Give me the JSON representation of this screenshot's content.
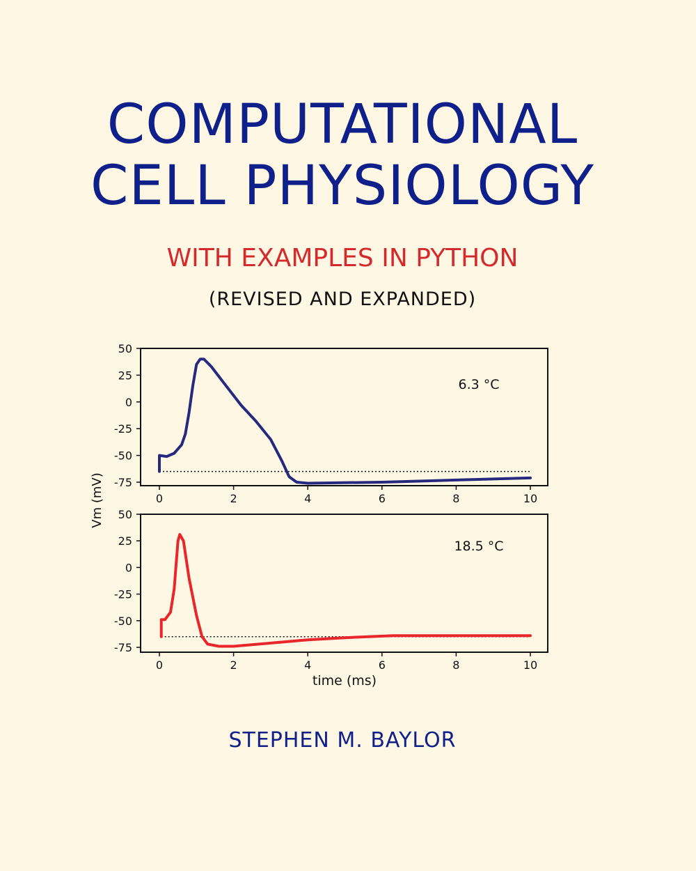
{
  "cover": {
    "title_line1": "COMPUTATIONAL",
    "title_line2": "CELL PHYSIOLOGY",
    "subtitle": "WITH EXAMPLES IN PYTHON",
    "edition": "(REVISED AND EXPANDED)",
    "author": "STEPHEN M. BAYLOR",
    "colors": {
      "background": "#fef7e4",
      "title": "#10208a",
      "subtitle": "#d42a2e"
    }
  },
  "chart_data": [
    {
      "type": "line",
      "annotation": "6.3 °C",
      "ylabel": "Vm (mV)",
      "xlabel": "",
      "xlim": [
        0,
        10
      ],
      "ylim": [
        -75,
        50
      ],
      "xticks": [
        "0",
        "2",
        "4",
        "6",
        "8",
        "10"
      ],
      "yticks": [
        "50",
        "25",
        "0",
        "-25",
        "-50",
        "-75"
      ],
      "resting_line": -65,
      "color": "#262a7e",
      "x": [
        0,
        0,
        0.2,
        0.4,
        0.6,
        0.7,
        0.8,
        0.9,
        1.0,
        1.1,
        1.2,
        1.4,
        1.8,
        2.2,
        2.6,
        3.0,
        3.3,
        3.5,
        3.7,
        4,
        6,
        8,
        10
      ],
      "y": [
        -65,
        -50,
        -51,
        -48,
        -40,
        -30,
        -10,
        15,
        35,
        40,
        40,
        33,
        15,
        -3,
        -18,
        -35,
        -55,
        -70,
        -75,
        -76,
        -75,
        -73,
        -71
      ]
    },
    {
      "type": "line",
      "annotation": "18.5 °C",
      "xlabel": "time (ms)",
      "xlim": [
        0,
        10
      ],
      "ylim": [
        -75,
        50
      ],
      "xticks": [
        "0",
        "2",
        "4",
        "6",
        "8",
        "10"
      ],
      "yticks": [
        "50",
        "25",
        "0",
        "-25",
        "-50",
        "-75"
      ],
      "resting_line": -65,
      "color": "#e8262b",
      "x": [
        0.05,
        0.05,
        0.15,
        0.3,
        0.4,
        0.5,
        0.55,
        0.65,
        0.8,
        1.0,
        1.15,
        1.3,
        1.6,
        2,
        3,
        4,
        5,
        6.3,
        8,
        10
      ],
      "y": [
        -65,
        -49,
        -49,
        -42,
        -20,
        25,
        31,
        25,
        -10,
        -45,
        -65,
        -72,
        -74,
        -74,
        -71,
        -68,
        -66,
        -64,
        -64,
        -64
      ]
    }
  ]
}
